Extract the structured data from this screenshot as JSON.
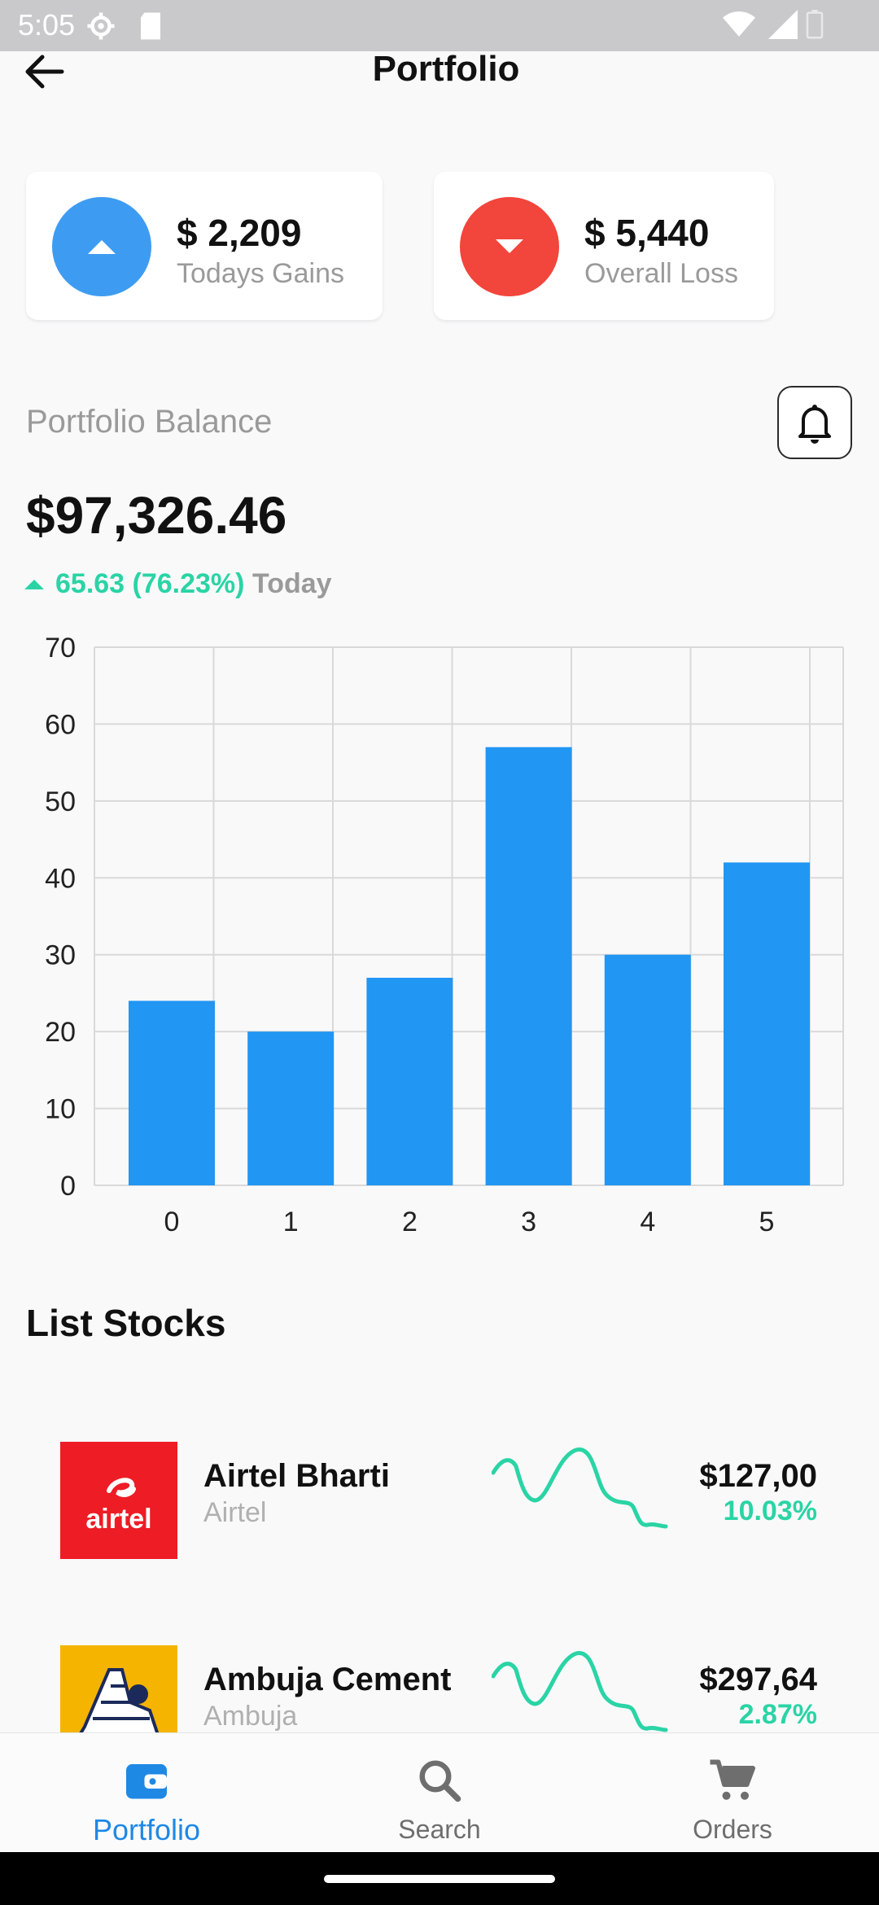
{
  "status_bar": {
    "time": "5:05"
  },
  "app_bar": {
    "title": "Portfolio"
  },
  "summary": {
    "gains": {
      "amount": "$ 2,209",
      "label": "Todays Gains",
      "color": "#3d9cf2"
    },
    "loss": {
      "amount": "$ 5,440",
      "label": "Overall Loss",
      "color": "#f2453b"
    }
  },
  "balance": {
    "label": "Portfolio Balance",
    "value": "$97,326.46",
    "change": "65.63 (76.23%)",
    "period": "Today"
  },
  "chart_data": {
    "type": "bar",
    "categories": [
      "0",
      "1",
      "2",
      "3",
      "4",
      "5"
    ],
    "values": [
      24,
      20,
      27,
      57,
      30,
      42
    ],
    "ylim": [
      0,
      70
    ],
    "yticks": [
      "0",
      "10",
      "20",
      "30",
      "40",
      "50",
      "60",
      "70"
    ],
    "grid": true,
    "bar_color": "#2196f3"
  },
  "stocks": {
    "title": "List Stocks",
    "items": [
      {
        "name": "Airtel Bharti",
        "symbol": "Airtel",
        "price": "$127,00",
        "change": "10.03%",
        "logo_text": "airtel"
      },
      {
        "name": "Ambuja Cement",
        "symbol": "Ambuja",
        "price": "$297,64",
        "change": "2.87%"
      }
    ]
  },
  "bottom_nav": {
    "items": [
      {
        "label": "Portfolio",
        "icon": "wallet-icon",
        "active": true
      },
      {
        "label": "Search",
        "icon": "search-icon"
      },
      {
        "label": "Orders",
        "icon": "cart-icon"
      }
    ],
    "active_color": "#1e88e5"
  }
}
